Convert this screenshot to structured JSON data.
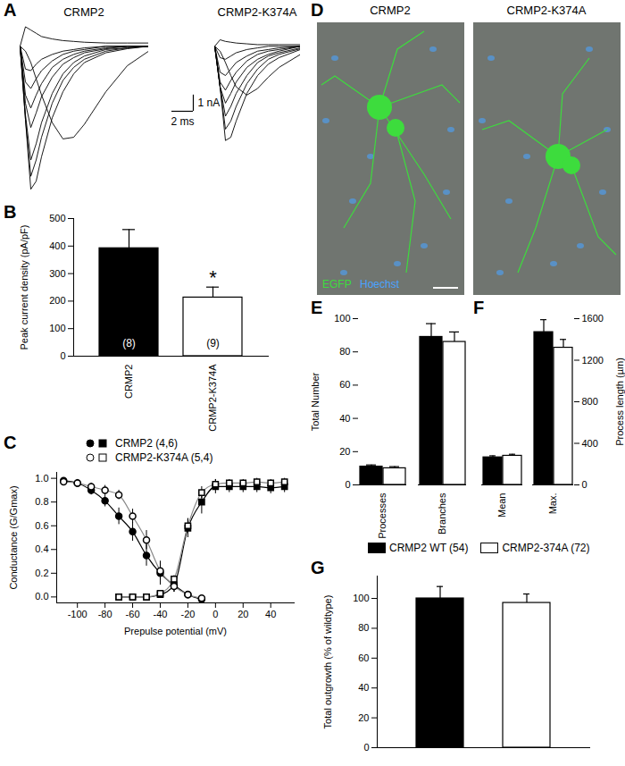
{
  "chart_data": [
    {
      "panel": "A",
      "type": "line",
      "color": "#000000",
      "tick_labels": false,
      "ylim": [
        -9.5,
        1.5
      ],
      "scale_bar": {
        "x": 2,
        "x_label": "2 ms",
        "y": 1,
        "y_label": "1 nA"
      },
      "groups": [
        {
          "title": "CRMP2",
          "xlim": [
            0,
            12
          ],
          "x": [
            0,
            0.5,
            1,
            1.5,
            2,
            3,
            4,
            5,
            6,
            8,
            10,
            12
          ],
          "series": [
            {
              "values": [
                0,
                -4.5,
                -8.8,
                -8.3,
                -6.8,
                -4.4,
                -2.8,
                -1.7,
                -1.0,
                -0.4,
                -0.15,
                0
              ]
            },
            {
              "values": [
                0,
                -4.5,
                -8.0,
                -7.0,
                -5.6,
                -3.5,
                -2.1,
                -1.3,
                -0.8,
                -0.3,
                -0.1,
                0
              ]
            },
            {
              "values": [
                0,
                -4.2,
                -7.0,
                -6.0,
                -4.7,
                -2.9,
                -1.7,
                -1.0,
                -0.6,
                -0.2,
                -0.1,
                0
              ]
            },
            {
              "values": [
                0,
                -0.3,
                -1.0,
                -2.0,
                -3.0,
                -4.7,
                -5.7,
                -5.6,
                -4.8,
                -2.8,
                -1.2,
                -0.3
              ]
            },
            {
              "values": [
                0,
                -3.5,
                -5.0,
                -4.1,
                -3.1,
                -1.9,
                -1.1,
                -0.7,
                -0.4,
                -0.15,
                0,
                0
              ]
            },
            {
              "values": [
                0,
                -3.0,
                -3.8,
                -3.0,
                -2.3,
                -1.3,
                -0.8,
                -0.5,
                -0.3,
                -0.1,
                0,
                0
              ]
            },
            {
              "values": [
                0,
                -2.2,
                -2.6,
                -2.0,
                -1.5,
                -0.9,
                -0.5,
                -0.3,
                -0.2,
                0,
                0,
                0
              ]
            },
            {
              "values": [
                0,
                -1.4,
                -1.5,
                -1.1,
                -0.8,
                -0.5,
                -0.3,
                -0.2,
                -0.1,
                0,
                0,
                0
              ]
            },
            {
              "values": [
                0,
                1.2,
                1.0,
                0.8,
                0.6,
                0.45,
                0.35,
                0.3,
                0.25,
                0.2,
                0.2,
                0.2
              ]
            }
          ]
        },
        {
          "title": "CRMP2-K374A",
          "xlim": [
            0,
            8
          ],
          "x": [
            0,
            0.5,
            1,
            1.5,
            2,
            3,
            4,
            5,
            6,
            8
          ],
          "series": [
            {
              "values": [
                0,
                -2.5,
                -5.8,
                -5.6,
                -4.6,
                -2.9,
                -1.8,
                -1.1,
                -0.7,
                -0.2
              ]
            },
            {
              "values": [
                0,
                -2.5,
                -5.1,
                -4.6,
                -3.7,
                -2.3,
                -1.4,
                -0.8,
                -0.5,
                -0.15
              ]
            },
            {
              "values": [
                0,
                -2.5,
                -4.3,
                -3.7,
                -2.9,
                -1.8,
                -1.0,
                -0.6,
                -0.4,
                -0.1
              ]
            },
            {
              "values": [
                0,
                -2.5,
                -3.5,
                -2.9,
                -2.2,
                -1.3,
                -0.8,
                -0.5,
                -0.3,
                0
              ]
            },
            {
              "values": [
                0,
                -2.2,
                -2.7,
                -2.1,
                -1.6,
                -0.9,
                -0.5,
                -0.3,
                -0.2,
                0
              ]
            },
            {
              "values": [
                0,
                -1.6,
                -1.8,
                -1.4,
                -1.0,
                -0.6,
                -0.3,
                -0.2,
                -0.1,
                0
              ]
            },
            {
              "values": [
                0,
                -0.3,
                -1.0,
                -1.8,
                -2.5,
                -3.0,
                -2.6,
                -1.9,
                -1.3,
                -0.5
              ]
            },
            {
              "values": [
                0,
                -0.7,
                -0.8,
                -0.6,
                -0.4,
                -0.2,
                -0.1,
                0,
                0,
                0
              ]
            },
            {
              "values": [
                0,
                0.4,
                0.3,
                0.25,
                0.2,
                0.15,
                0.1,
                0.1,
                0.1,
                0.1
              ]
            }
          ]
        }
      ]
    },
    {
      "panel": "B",
      "type": "bar",
      "categories": [
        "CRMP2",
        "CRMP2-K374A"
      ],
      "values": [
        392,
        213
      ],
      "errors": [
        68,
        38
      ],
      "colors": [
        "#000000",
        "#ffffff"
      ],
      "n_labels": [
        "(8)",
        "(9)"
      ],
      "annotations": [
        {
          "category": "CRMP2-K374A",
          "text": "*"
        }
      ],
      "ylabel": "Peak current density (pA/pF)",
      "ylim": [
        0,
        500
      ],
      "yticks": [
        0,
        100,
        200,
        300,
        400,
        500
      ]
    },
    {
      "panel": "C",
      "type": "scatter",
      "xlabel": "Prepulse potential (mV)",
      "ylabel": "Conductance (G/Gmax)",
      "xlim": [
        -115,
        57
      ],
      "xticks": [
        -100,
        -80,
        -60,
        -40,
        -20,
        0,
        20,
        40
      ],
      "ylim": [
        -0.05,
        1.05
      ],
      "yticks": [
        {
          "value": 0,
          "label": "0.0"
        },
        {
          "value": 0.2,
          "label": "0.2"
        },
        {
          "value": 0.4,
          "label": "0.4"
        },
        {
          "value": 0.6,
          "label": "0.6"
        },
        {
          "value": 0.8,
          "label": "0.8"
        },
        {
          "value": 1,
          "label": "1.0"
        }
      ],
      "legend": "top-left",
      "series": [
        {
          "name": "CRMP2 (4,6)",
          "color": "#000000",
          "curves": [
            {
              "marker": "circle",
              "x": [
                -110,
                -100,
                -90,
                -80,
                -70,
                -60,
                -50,
                -40,
                -30,
                -20,
                -10
              ],
              "values": [
                0.98,
                0.96,
                0.9,
                0.81,
                0.68,
                0.55,
                0.35,
                0.2,
                0.1,
                0.02,
                -0.02
              ],
              "errors": [
                0.02,
                0.03,
                0.04,
                0.05,
                0.07,
                0.08,
                0.09,
                0.1,
                0.06,
                0.03,
                0.02
              ]
            },
            {
              "marker": "square",
              "x": [
                -70,
                -60,
                -50,
                -40,
                -30,
                -20,
                -10,
                0,
                10,
                20,
                30,
                40,
                50
              ],
              "values": [
                0,
                0,
                0,
                0.02,
                0.1,
                0.58,
                0.8,
                0.93,
                0.93,
                0.93,
                0.93,
                0.92,
                0.93
              ],
              "errors": [
                0,
                0,
                0,
                0.01,
                0.03,
                0.08,
                0.1,
                0.06,
                0.05,
                0.05,
                0.05,
                0.05,
                0.05
              ]
            }
          ]
        },
        {
          "name": "CRMP2-K374A (5,4)",
          "color": "#ffffff",
          "curves": [
            {
              "marker": "circle",
              "x": [
                -110,
                -100,
                -90,
                -80,
                -70,
                -60,
                -50,
                -40,
                -30,
                -20,
                -10
              ],
              "values": [
                0.97,
                0.96,
                0.93,
                0.9,
                0.86,
                0.68,
                0.48,
                0.22,
                0.09,
                0.02,
                -0.01
              ],
              "errors": [
                0.02,
                0.03,
                0.03,
                0.04,
                0.04,
                0.06,
                0.08,
                0.08,
                0.05,
                0.02,
                0.02
              ]
            },
            {
              "marker": "square",
              "x": [
                -70,
                -60,
                -50,
                -40,
                -30,
                -20,
                -10,
                0,
                10,
                20,
                30,
                40,
                50
              ],
              "values": [
                0,
                0,
                0,
                0.03,
                0.15,
                0.6,
                0.88,
                0.95,
                0.96,
                0.96,
                0.97,
                0.96,
                0.97
              ],
              "errors": [
                0,
                0,
                0,
                0.01,
                0.03,
                0.06,
                0.05,
                0.04,
                0.03,
                0.03,
                0.03,
                0.03,
                0.03
              ]
            }
          ]
        }
      ]
    },
    {
      "panel": "D",
      "type": "image",
      "titles": [
        "CRMP2",
        "CRMP2-K374A"
      ],
      "channels": [
        {
          "name": "EGFP",
          "color": "#3ddc3d"
        },
        {
          "name": "Hoechst",
          "color": "#4aa3ff"
        }
      ]
    },
    {
      "panel": "E",
      "type": "bar",
      "categories": [
        "Processes",
        "Branches"
      ],
      "ylabel": "Total Number",
      "ylim": [
        0,
        100
      ],
      "yticks": [
        0,
        20,
        40,
        60,
        80,
        100
      ],
      "legend": "bottom",
      "series": [
        {
          "name": "CRMP2 WT (54)",
          "color": "#000000",
          "values": [
            11,
            89
          ],
          "errors": [
            1,
            8
          ]
        },
        {
          "name": "CRMP2-374A (72)",
          "color": "#ffffff",
          "values": [
            10,
            86
          ],
          "errors": [
            1,
            6
          ]
        }
      ]
    },
    {
      "panel": "F",
      "type": "bar",
      "categories": [
        "Mean",
        "Max."
      ],
      "ylabel": "Process length (µm)",
      "ylim": [
        0,
        1600
      ],
      "yticks": [
        0,
        400,
        800,
        1200,
        1600
      ],
      "series": [
        {
          "color": "#000000",
          "values": [
            265,
            1470
          ],
          "errors": [
            15,
            120
          ]
        },
        {
          "color": "#ffffff",
          "values": [
            280,
            1320
          ],
          "errors": [
            15,
            80
          ]
        }
      ]
    },
    {
      "panel": "G",
      "type": "bar",
      "categories": [
        null,
        null
      ],
      "values": [
        100,
        97
      ],
      "errors": [
        8,
        6
      ],
      "colors": [
        "#000000",
        "#ffffff"
      ],
      "ylabel": "Total outgrowth (% of wildtype)",
      "ylim": [
        0,
        115
      ],
      "yticks": [
        0,
        20,
        40,
        60,
        80,
        100
      ]
    }
  ]
}
